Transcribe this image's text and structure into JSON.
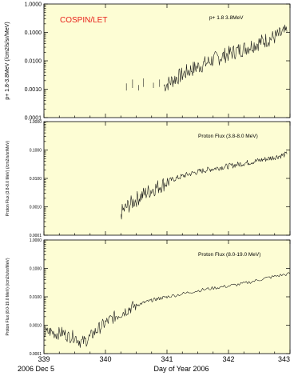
{
  "chart_data": {
    "type": "line",
    "x_axis": {
      "label": "Day of Year 2006",
      "date_label": "2006 Dec 5",
      "range": [
        339,
        343
      ],
      "ticks": [
        "339",
        "340",
        "341",
        "342",
        "343"
      ]
    },
    "panels": [
      {
        "instrument": "COSPIN/LET",
        "instrument_color": "#e8201a",
        "legend": "p+ 1.8 3.8MeV",
        "ylabel": "p+ 1.8-3.8MeV (/cm2/s/sr/MeV)",
        "yscale": "log",
        "ylim": [
          0.0001,
          1.0
        ],
        "yticks": [
          "1.0000",
          "0.1000",
          "0.0100",
          "0.0010",
          "0.0001"
        ],
        "series": [
          {
            "segments": [
              {
                "x": [
                  340.34,
                  340.35
                ],
                "y": [
                  0.0009,
                  0.0016
                ]
              },
              {
                "x": [
                  340.44,
                  340.45
                ],
                "y": [
                  0.0011,
                  0.0022
                ]
              },
              {
                "x": [
                  340.54,
                  340.55
                ],
                "y": [
                  0.0009,
                  0.0014
                ]
              },
              {
                "x": [
                  340.62,
                  340.63
                ],
                "y": [
                  0.0012,
                  0.0024
                ]
              },
              {
                "x": [
                  340.78,
                  340.79
                ],
                "y": [
                  0.0011,
                  0.0017
                ]
              },
              {
                "x": [
                  340.88,
                  340.89
                ],
                "y": [
                  0.0012,
                  0.0022
                ]
              }
            ],
            "x": [
              340.95,
              341.05,
              341.15,
              341.25,
              341.35,
              341.45,
              341.55,
              341.65,
              341.75,
              341.85,
              341.95,
              342.05,
              342.15,
              342.25,
              342.35,
              342.45,
              342.55,
              342.65,
              342.75,
              342.85,
              342.95
            ],
            "y": [
              0.0013,
              0.0018,
              0.0025,
              0.0032,
              0.0045,
              0.0055,
              0.0068,
              0.0085,
              0.011,
              0.013,
              0.016,
              0.019,
              0.023,
              0.027,
              0.033,
              0.04,
              0.048,
              0.058,
              0.068,
              0.085,
              0.105
            ]
          }
        ]
      },
      {
        "legend": "Proton Flux (3.8-8.0 MeV)",
        "ylabel": "Proton Flux (3.8-8.0 MeV) (/cm2/s/sr/MeV)",
        "yscale": "log",
        "ylim": [
          0.0001,
          1.0
        ],
        "yticks": [
          "1.0000",
          "0.1000",
          "0.0100",
          "0.0010",
          "0.0001"
        ],
        "series": [
          {
            "x": [
              340.25,
              340.35,
              340.45,
              340.55,
              340.65,
              340.75,
              340.85,
              340.95,
              341.05,
              341.15,
              341.25,
              341.35,
              341.45,
              341.55,
              341.65,
              341.75,
              341.85,
              341.95,
              342.05,
              342.15,
              342.25,
              342.35,
              342.45,
              342.55,
              342.65,
              342.75,
              342.85,
              342.95
            ],
            "y": [
              0.0006,
              0.001,
              0.0015,
              0.0022,
              0.003,
              0.004,
              0.005,
              0.0065,
              0.0085,
              0.01,
              0.012,
              0.014,
              0.016,
              0.018,
              0.02,
              0.022,
              0.024,
              0.026,
              0.028,
              0.031,
              0.034,
              0.037,
              0.041,
              0.045,
              0.05,
              0.056,
              0.063,
              0.072
            ]
          }
        ]
      },
      {
        "legend": "Proton Flux (8.0-19.0 MeV)",
        "ylabel": "Proton Flux (8.0-19.0 MeV) (/cm2/s/sr/MeV)",
        "yscale": "log",
        "ylim": [
          0.0001,
          1.0
        ],
        "yticks": [
          "1.0000",
          "0.1000",
          "0.0100",
          "0.0010",
          "0.0001"
        ],
        "series": [
          {
            "x": [
              339.0,
              339.1,
              339.2,
              339.3,
              339.4,
              339.5,
              339.6,
              339.7,
              339.8,
              339.9,
              340.0,
              340.1,
              340.2,
              340.3,
              340.4,
              340.5,
              340.6,
              340.7,
              340.8,
              340.9,
              341.0,
              341.2,
              341.4,
              341.6,
              341.8,
              342.0,
              342.2,
              342.4,
              342.6,
              342.8,
              343.0
            ],
            "y": [
              0.0005,
              0.0006,
              0.0005,
              0.00055,
              0.0004,
              0.0004,
              0.00025,
              0.0003,
              0.0005,
              0.0008,
              0.0012,
              0.0017,
              0.0023,
              0.003,
              0.004,
              0.005,
              0.006,
              0.007,
              0.008,
              0.009,
              0.01,
              0.012,
              0.015,
              0.018,
              0.021,
              0.024,
              0.028,
              0.035,
              0.045,
              0.055,
              0.065
            ]
          }
        ]
      }
    ]
  }
}
